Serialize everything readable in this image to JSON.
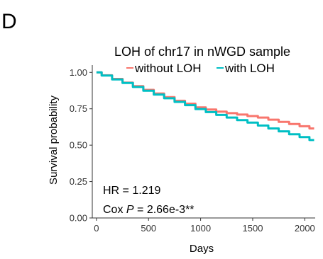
{
  "panel_label": "D",
  "chart_data": {
    "type": "line",
    "title": "LOH of chr17 in nWGD sample",
    "xlabel": "Days",
    "ylabel": "Survival probability",
    "xlim": [
      -40,
      2100
    ],
    "ylim": [
      0,
      1.05
    ],
    "xticks": [
      0,
      500,
      1000,
      1500,
      2000
    ],
    "yticks": [
      0.0,
      0.25,
      0.5,
      0.75,
      1.0
    ],
    "xtick_labels": [
      "0",
      "500",
      "1000",
      "1500",
      "2000"
    ],
    "ytick_labels": [
      "0.00",
      "0.25",
      "0.50",
      "0.75",
      "1.00"
    ],
    "grid": false,
    "legend_position": "top",
    "series": [
      {
        "name": "without LOH",
        "color": "#F8766D",
        "x": [
          0,
          100,
          200,
          300,
          400,
          500,
          600,
          700,
          800,
          900,
          1000,
          1100,
          1200,
          1300,
          1400,
          1500,
          1600,
          1700,
          1800,
          1900,
          2000,
          2090
        ],
        "y": [
          1.0,
          0.98,
          0.955,
          0.93,
          0.905,
          0.88,
          0.855,
          0.83,
          0.805,
          0.785,
          0.76,
          0.745,
          0.73,
          0.72,
          0.71,
          0.7,
          0.69,
          0.675,
          0.66,
          0.645,
          0.63,
          0.615
        ]
      },
      {
        "name": "with LOH",
        "color": "#00BFC4",
        "x": [
          0,
          100,
          200,
          300,
          400,
          500,
          600,
          700,
          800,
          900,
          1000,
          1100,
          1200,
          1300,
          1400,
          1500,
          1600,
          1700,
          1800,
          1900,
          2000,
          2090
        ],
        "y": [
          1.0,
          0.978,
          0.952,
          0.927,
          0.9,
          0.874,
          0.848,
          0.822,
          0.797,
          0.775,
          0.748,
          0.727,
          0.708,
          0.69,
          0.672,
          0.655,
          0.635,
          0.615,
          0.595,
          0.575,
          0.555,
          0.535
        ]
      }
    ],
    "annotations": {
      "hr": "HR = 1.219",
      "cox_prefix": "Cox ",
      "cox_p": "P",
      "cox_value": " = 2.66e-3**"
    }
  }
}
